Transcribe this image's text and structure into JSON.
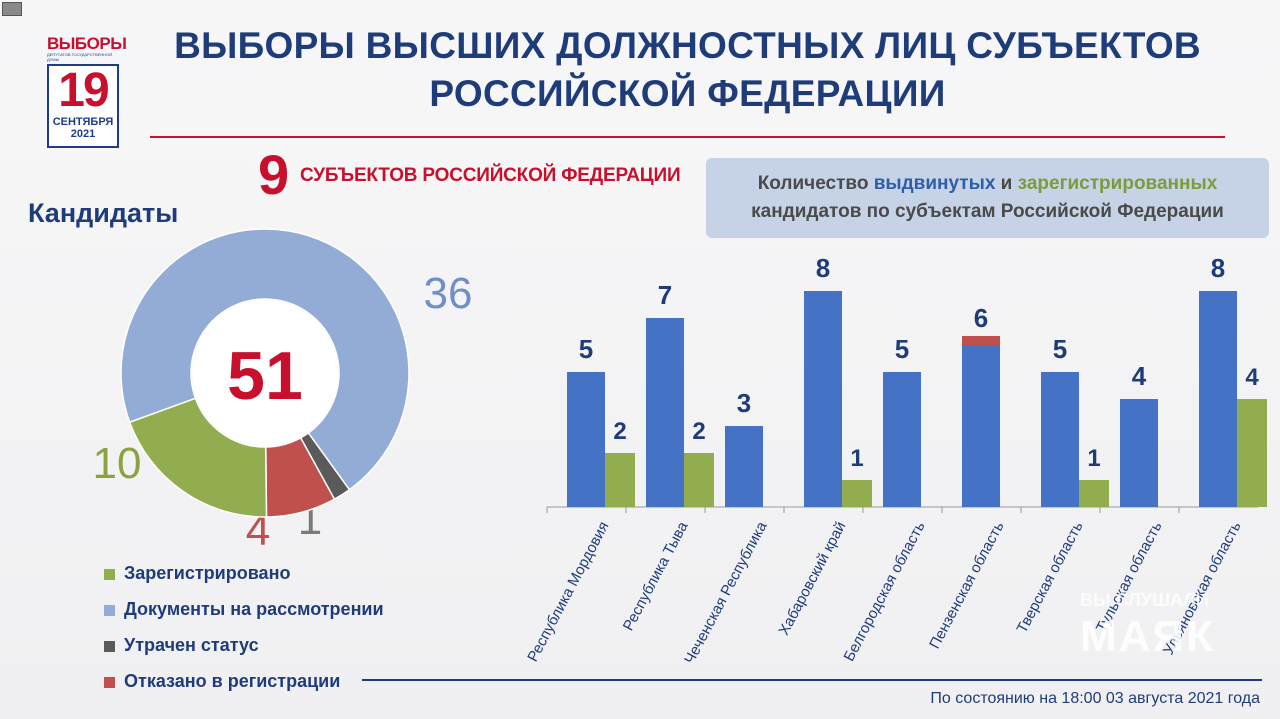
{
  "logo": {
    "top": "ВЫБОРЫ",
    "sub": "ДЕПУТАТОВ ГОСУДАРСТВЕННОЙ ДУМЫ",
    "day": "19",
    "month": "СЕНТЯБРЯ",
    "year": "2021"
  },
  "title_line1": "ВЫБОРЫ ВЫСШИХ ДОЛЖНОСТНЫХ ЛИЦ СУБЪЕКТОВ",
  "title_line2": "РОССИЙСКОЙ ФЕДЕРАЦИИ",
  "subjects_count": "9",
  "subjects_text": "СУБЪЕКТОВ РОССИЙСКОЙ ФЕДЕРАЦИИ",
  "candidates_title": "Кандидаты",
  "info": {
    "p1": "Количество ",
    "blue": "выдвинутых",
    "p2": " и ",
    "green": "зарегистрированных",
    "line2": "кандидатов по субъектам Российской Федерации"
  },
  "as_of": "По состоянию на 18:00 03 августа 2021 года",
  "watermark": {
    "line1": "ВЫ СЛУШАЛИ",
    "line2": "МАЯК"
  },
  "colors": {
    "blue": "#4472c4",
    "green": "#92ad4f",
    "red": "#c0504d",
    "gray": "#5a5a5a",
    "title": "#1f3c7a",
    "accent": "#c8102e"
  },
  "chart_data": [
    {
      "type": "pie",
      "center_label": "51",
      "slices": [
        {
          "label": "Документы на рассмотрении",
          "value": 36,
          "color": "#93acd6"
        },
        {
          "label": "Утрачен статус",
          "value": 1,
          "color": "#5a5a5a"
        },
        {
          "label": "Отказано в регистрации",
          "value": 4,
          "color": "#c0504d"
        },
        {
          "label": "Зарегистрировано",
          "value": 10,
          "color": "#92ad4f"
        }
      ],
      "legend": [
        {
          "label": "Зарегистрировано",
          "color": "#92ad4f"
        },
        {
          "label": "Документы на рассмотрении",
          "color": "#93acd6"
        },
        {
          "label": "Утрачен статус",
          "color": "#5a5a5a"
        },
        {
          "label": "Отказано в регистрации",
          "color": "#c0504d"
        }
      ]
    },
    {
      "type": "bar",
      "categories": [
        "Республика Мордовия",
        "Республика Тыва",
        "Чеченская Республика",
        "Хабаровский край",
        "Белгородская область",
        "Пензенская область",
        "Тверская область",
        "Тульская область",
        "Ульяновская область"
      ],
      "series": [
        {
          "values": [
            5,
            7,
            3,
            8,
            5,
            6,
            5,
            4,
            8
          ],
          "color": "#4472c4"
        },
        {
          "values": [
            2,
            2,
            null,
            1,
            null,
            null,
            1,
            null,
            4
          ],
          "color": "#92ad4f"
        }
      ],
      "ylim": [
        0,
        8
      ]
    }
  ]
}
